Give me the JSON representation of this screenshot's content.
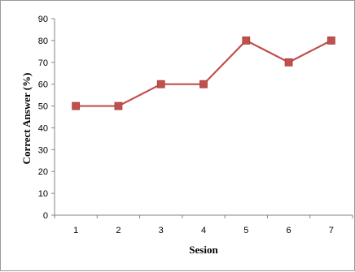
{
  "chart_data": {
    "type": "line",
    "x": [
      "1",
      "2",
      "3",
      "4",
      "5",
      "6",
      "7"
    ],
    "series": [
      {
        "values": [
          50,
          50,
          60,
          60,
          80,
          70,
          80
        ],
        "color": "#c0504d",
        "marker": "square"
      }
    ],
    "xlabel": "Sesion",
    "ylabel": "Correct Answer (%)",
    "ylim": [
      0,
      90
    ],
    "yticks": [
      "0",
      "10",
      "20",
      "30",
      "40",
      "50",
      "60",
      "70",
      "80",
      "90"
    ],
    "grid": false,
    "legend": "none"
  }
}
